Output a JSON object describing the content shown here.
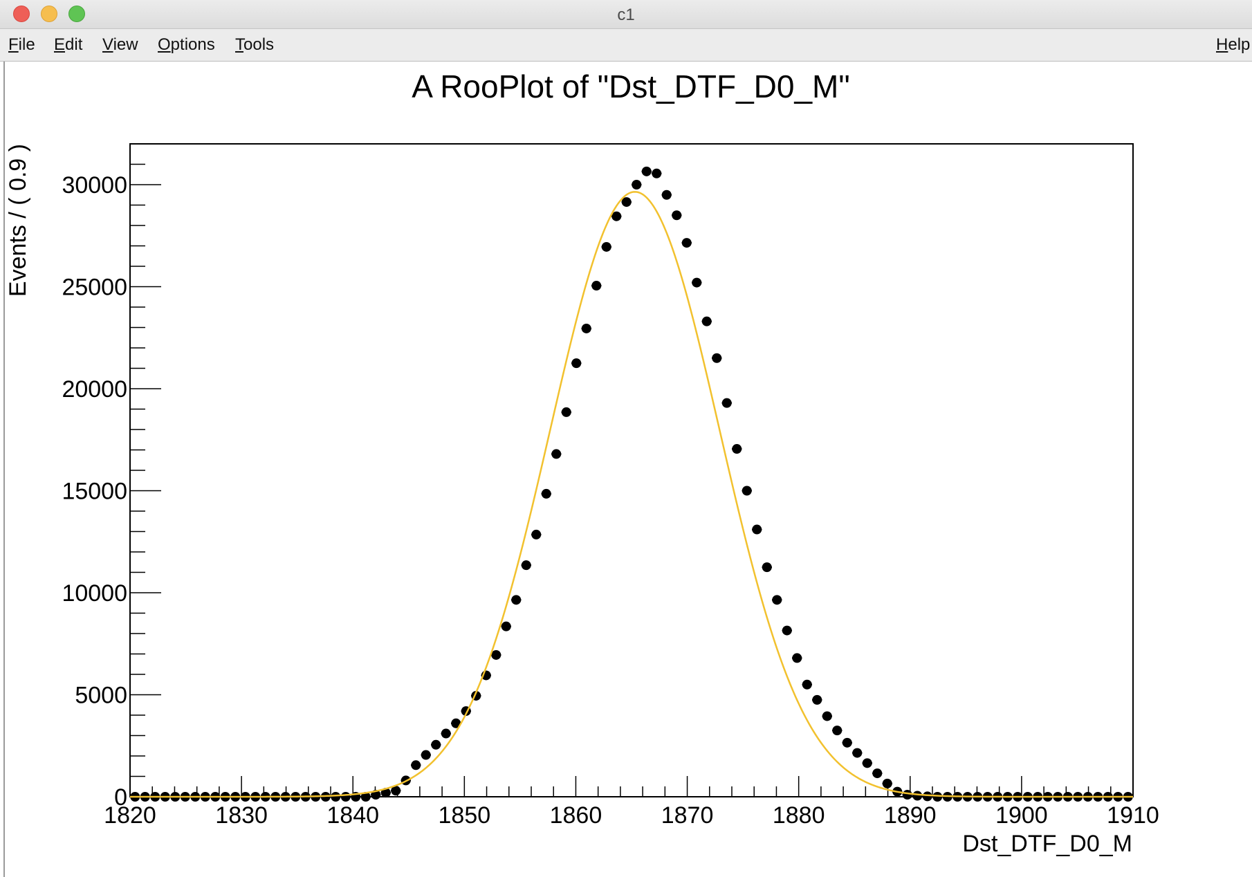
{
  "window": {
    "title": "c1"
  },
  "menubar": {
    "items": [
      {
        "mnemonic": "F",
        "rest": "ile"
      },
      {
        "mnemonic": "E",
        "rest": "dit"
      },
      {
        "mnemonic": "V",
        "rest": "iew"
      },
      {
        "mnemonic": "O",
        "rest": "ptions"
      },
      {
        "mnemonic": "T",
        "rest": "ools"
      }
    ],
    "help": {
      "mnemonic": "H",
      "rest": "elp"
    }
  },
  "colors": {
    "curve": "#f2c12e",
    "points": "#000000",
    "background": "#ffffff"
  },
  "chart_data": {
    "type": "scatter",
    "title": "A RooPlot of \"Dst_DTF_D0_M\"",
    "xlabel": "Dst_DTF_D0_M",
    "ylabel": "Events / ( 0.9 )",
    "xlim": [
      1820,
      1910
    ],
    "ylim": [
      0,
      32000
    ],
    "xticks": [
      "1820",
      "1830",
      "1840",
      "1850",
      "1860",
      "1870",
      "1880",
      "1890",
      "1900",
      "1910"
    ],
    "yticks": [
      "0",
      "5000",
      "10000",
      "15000",
      "20000",
      "25000",
      "30000"
    ],
    "grid": false,
    "series": [
      {
        "kind": "data",
        "x": [
          1820.45,
          1821.35,
          1822.25,
          1823.15,
          1824.05,
          1824.95,
          1825.85,
          1826.75,
          1827.65,
          1828.55,
          1829.45,
          1830.35,
          1831.25,
          1832.15,
          1833.05,
          1833.95,
          1834.85,
          1835.75,
          1836.65,
          1837.55,
          1838.45,
          1839.35,
          1840.25,
          1841.15,
          1842.05,
          1842.95,
          1843.85,
          1844.75,
          1845.65,
          1846.55,
          1847.45,
          1848.35,
          1849.25,
          1850.15,
          1851.05,
          1851.95,
          1852.85,
          1853.75,
          1854.65,
          1855.55,
          1856.45,
          1857.35,
          1858.25,
          1859.15,
          1860.05,
          1860.95,
          1861.85,
          1862.75,
          1863.65,
          1864.55,
          1865.45,
          1866.35,
          1867.25,
          1868.15,
          1869.05,
          1869.95,
          1870.85,
          1871.75,
          1872.65,
          1873.55,
          1874.45,
          1875.35,
          1876.25,
          1877.15,
          1878.05,
          1878.95,
          1879.85,
          1880.75,
          1881.65,
          1882.55,
          1883.45,
          1884.35,
          1885.25,
          1886.15,
          1887.05,
          1887.95,
          1888.85,
          1889.75,
          1890.65,
          1891.55,
          1892.45,
          1893.35,
          1894.25,
          1895.15,
          1896.05,
          1896.95,
          1897.85,
          1898.75,
          1899.65,
          1900.55,
          1901.45,
          1902.35,
          1903.25,
          1904.15,
          1905.05,
          1905.95,
          1906.85,
          1907.75,
          1908.65,
          1909.55
        ],
        "y": [
          0,
          0,
          0,
          0,
          0,
          0,
          0,
          0,
          0,
          0,
          0,
          0,
          0,
          0,
          0,
          0,
          0,
          0,
          0,
          0,
          0,
          0,
          0,
          0,
          100,
          200,
          300,
          800,
          1550,
          2050,
          2550,
          3100,
          3600,
          4200,
          4950,
          5950,
          6950,
          8350,
          9650,
          11350,
          12850,
          14850,
          16800,
          18850,
          21250,
          22950,
          25050,
          26950,
          28450,
          29150,
          30000,
          30650,
          30550,
          29500,
          28500,
          27150,
          25200,
          23300,
          21500,
          19300,
          17050,
          15000,
          13100,
          11250,
          9650,
          8150,
          6800,
          5500,
          4750,
          3950,
          3250,
          2650,
          2150,
          1650,
          1150,
          650,
          250,
          100,
          50,
          20,
          0,
          0,
          0,
          0,
          0,
          0,
          0,
          0,
          0,
          0,
          0,
          0,
          0,
          0,
          0,
          0,
          0,
          0,
          0,
          0
        ]
      },
      {
        "kind": "fit",
        "shape": "gaussian",
        "mean": 1865.3,
        "sigma": 7.6,
        "amplitude": 29650
      }
    ]
  }
}
